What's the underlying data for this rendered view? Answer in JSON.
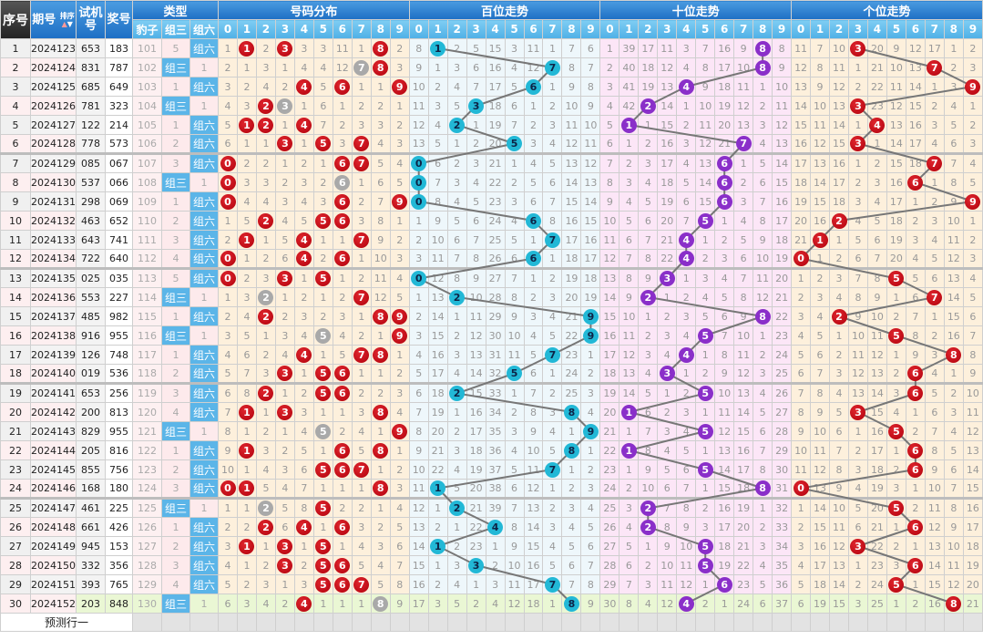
{
  "header": {
    "index": "序号",
    "period": "期号",
    "sort_label": "排序",
    "trial": "试机号",
    "draw": "奖号",
    "type_group": "类型",
    "type_cols": [
      "豹子",
      "组三",
      "组六"
    ],
    "dist_group": "号码分布",
    "bai_group": "百位走势",
    "shi_group": "十位走势",
    "ge_group": "个位走势",
    "digits": [
      "0",
      "1",
      "2",
      "3",
      "4",
      "5",
      "6",
      "7",
      "8",
      "9"
    ]
  },
  "labels": {
    "zusan": "组三",
    "zuliu": "组六"
  },
  "first_row_omissions": {
    "baozi": 101,
    "zusan": 5,
    "dist": [
      1,
      0,
      2,
      0,
      3,
      3,
      11,
      1,
      0,
      2
    ],
    "bai": [
      8,
      0,
      2,
      5,
      15,
      3,
      11,
      1,
      7,
      6
    ],
    "shi": [
      1,
      39,
      17,
      11,
      3,
      7,
      16,
      9,
      0,
      8
    ],
    "ge": [
      11,
      7,
      10,
      0,
      20,
      9,
      12,
      17,
      1,
      2
    ]
  },
  "rows": [
    {
      "idx": "1",
      "period": "2024123",
      "trial": "653",
      "draw": "183"
    },
    {
      "idx": "2",
      "period": "2024124",
      "trial": "831",
      "draw": "787"
    },
    {
      "idx": "3",
      "period": "2024125",
      "trial": "685",
      "draw": "649"
    },
    {
      "idx": "4",
      "period": "2024126",
      "trial": "781",
      "draw": "323"
    },
    {
      "idx": "5",
      "period": "2024127",
      "trial": "122",
      "draw": "214"
    },
    {
      "idx": "6",
      "period": "2024128",
      "trial": "778",
      "draw": "573"
    },
    {
      "idx": "7",
      "period": "2024129",
      "trial": "085",
      "draw": "067"
    },
    {
      "idx": "8",
      "period": "2024130",
      "trial": "537",
      "draw": "066"
    },
    {
      "idx": "9",
      "period": "2024131",
      "trial": "298",
      "draw": "069"
    },
    {
      "idx": "10",
      "period": "2024132",
      "trial": "463",
      "draw": "652"
    },
    {
      "idx": "11",
      "period": "2024133",
      "trial": "643",
      "draw": "741"
    },
    {
      "idx": "12",
      "period": "2024134",
      "trial": "722",
      "draw": "640"
    },
    {
      "idx": "13",
      "period": "2024135",
      "trial": "025",
      "draw": "035"
    },
    {
      "idx": "14",
      "period": "2024136",
      "trial": "553",
      "draw": "227"
    },
    {
      "idx": "15",
      "period": "2024137",
      "trial": "485",
      "draw": "982"
    },
    {
      "idx": "16",
      "period": "2024138",
      "trial": "916",
      "draw": "955"
    },
    {
      "idx": "17",
      "period": "2024139",
      "trial": "126",
      "draw": "748"
    },
    {
      "idx": "18",
      "period": "2024140",
      "trial": "019",
      "draw": "536"
    },
    {
      "idx": "19",
      "period": "2024141",
      "trial": "653",
      "draw": "256"
    },
    {
      "idx": "20",
      "period": "2024142",
      "trial": "200",
      "draw": "813"
    },
    {
      "idx": "21",
      "period": "2024143",
      "trial": "829",
      "draw": "955"
    },
    {
      "idx": "22",
      "period": "2024144",
      "trial": "205",
      "draw": "816"
    },
    {
      "idx": "23",
      "period": "2024145",
      "trial": "855",
      "draw": "756"
    },
    {
      "idx": "24",
      "period": "2024146",
      "trial": "168",
      "draw": "180"
    },
    {
      "idx": "25",
      "period": "2024147",
      "trial": "461",
      "draw": "225"
    },
    {
      "idx": "26",
      "period": "2024148",
      "trial": "661",
      "draw": "426"
    },
    {
      "idx": "27",
      "period": "2024149",
      "trial": "945",
      "draw": "153"
    },
    {
      "idx": "28",
      "period": "2024150",
      "trial": "332",
      "draw": "356"
    },
    {
      "idx": "29",
      "period": "2024151",
      "trial": "393",
      "draw": "765"
    },
    {
      "idx": "30",
      "period": "2024152",
      "trial": "203",
      "draw": "848"
    }
  ],
  "footer": {
    "predict_label": "预测行一"
  },
  "colors": {
    "dist_ball": "#b0000c",
    "repeat_ball": "#a9a9a9",
    "bai_ball": "#22b8d6",
    "shi_ball": "#8a2fc9",
    "ge_ball": "#b0000c",
    "line": "#777777"
  }
}
